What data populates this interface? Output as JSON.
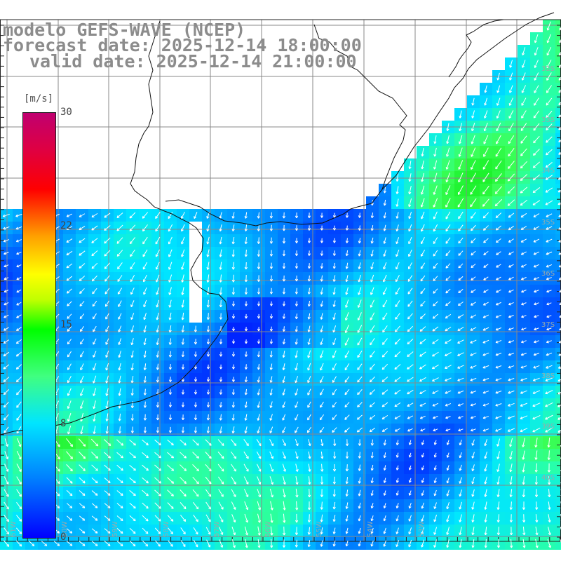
{
  "title": {
    "line1": "modelo GEFS-WAVE (NCEP)",
    "line2": "forecast date: 2025-12-14 18:00:00",
    "line3": "valid date: 2025-12-14 21:00:00"
  },
  "colorbar": {
    "unit": "[m/s]",
    "labels": [
      {
        "value": 30,
        "text": "30"
      },
      {
        "value": 22,
        "text": "22"
      },
      {
        "value": 15,
        "text": "15"
      },
      {
        "value": 8,
        "text": "8"
      },
      {
        "value": 0,
        "text": "0"
      }
    ]
  },
  "lat_labels": [
    "32S",
    "33S",
    "34S",
    "35S",
    "36S",
    "37S",
    "38S",
    "39S",
    "40S"
  ],
  "lon_labels": [
    "61W",
    "60W",
    "59W",
    "58W",
    "57W",
    "56W",
    "55W",
    "54W",
    "53W"
  ],
  "colors": {
    "land": "#ffffff",
    "grid": "#888888",
    "coast": "#111111",
    "arrow": "#ffffff"
  }
}
